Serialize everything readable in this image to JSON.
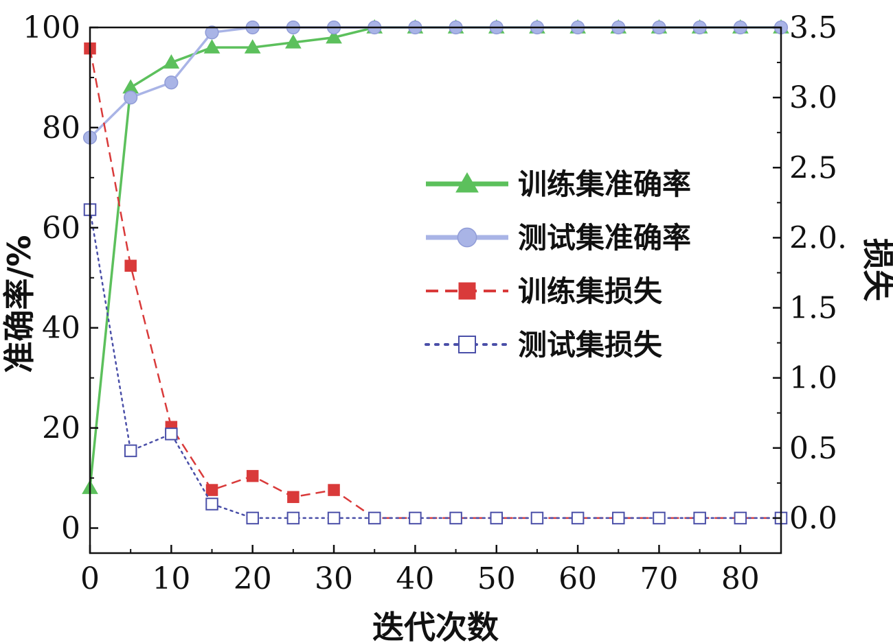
{
  "chart_data": {
    "type": "line",
    "x": [
      0,
      5,
      10,
      15,
      20,
      25,
      30,
      35,
      40,
      45,
      50,
      55,
      60,
      65,
      70,
      75,
      80,
      85
    ],
    "xlabel": "迭代次数",
    "ylabel": "准确率/%",
    "y2label": "损失",
    "xlim": [
      0,
      85
    ],
    "ylim": [
      -5,
      100
    ],
    "y2lim": [
      -0.25,
      3.5
    ],
    "xticks": [
      "0",
      "10",
      "20",
      "30",
      "40",
      "50",
      "60",
      "70",
      "80"
    ],
    "yticks": [
      "0",
      "20",
      "40",
      "60",
      "80",
      "100"
    ],
    "y2ticks": [
      "0.0",
      "0.5",
      "1.0",
      "1.5",
      "2.0.",
      "2.5",
      "3.0",
      "3.5"
    ],
    "legend_position": "right-middle",
    "series": [
      {
        "name": "训练集准确率",
        "axis": "left",
        "color": "#5cc05c",
        "marker": "triangle",
        "line": "solid",
        "values": [
          8,
          88,
          93,
          96,
          96,
          97,
          98,
          100,
          100,
          100,
          100,
          100,
          100,
          100,
          100,
          100,
          100,
          100
        ]
      },
      {
        "name": "测试集准确率",
        "axis": "left",
        "color": "#a9b4e6",
        "marker": "circle",
        "line": "solid",
        "values": [
          78,
          86,
          89,
          99,
          100,
          100,
          100,
          100,
          100,
          100,
          100,
          100,
          100,
          100,
          100,
          100,
          100,
          100
        ]
      },
      {
        "name": "训练集损失",
        "axis": "right",
        "color": "#d93a3a",
        "marker": "square-filled",
        "line": "dashed",
        "values": [
          3.35,
          1.8,
          0.65,
          0.2,
          0.3,
          0.15,
          0.2,
          0.0,
          0.0,
          0.0,
          0.0,
          0.0,
          0.0,
          0.0,
          0.0,
          0.0,
          0.0,
          0.0
        ]
      },
      {
        "name": "测试集损失",
        "axis": "right",
        "color": "#4a4fa8",
        "marker": "square-open",
        "line": "dotted",
        "values": [
          2.2,
          0.48,
          0.6,
          0.1,
          0.0,
          0.0,
          0.0,
          0.0,
          0.0,
          0.0,
          0.0,
          0.0,
          0.0,
          0.0,
          0.0,
          0.0,
          0.0,
          0.0
        ]
      }
    ]
  }
}
